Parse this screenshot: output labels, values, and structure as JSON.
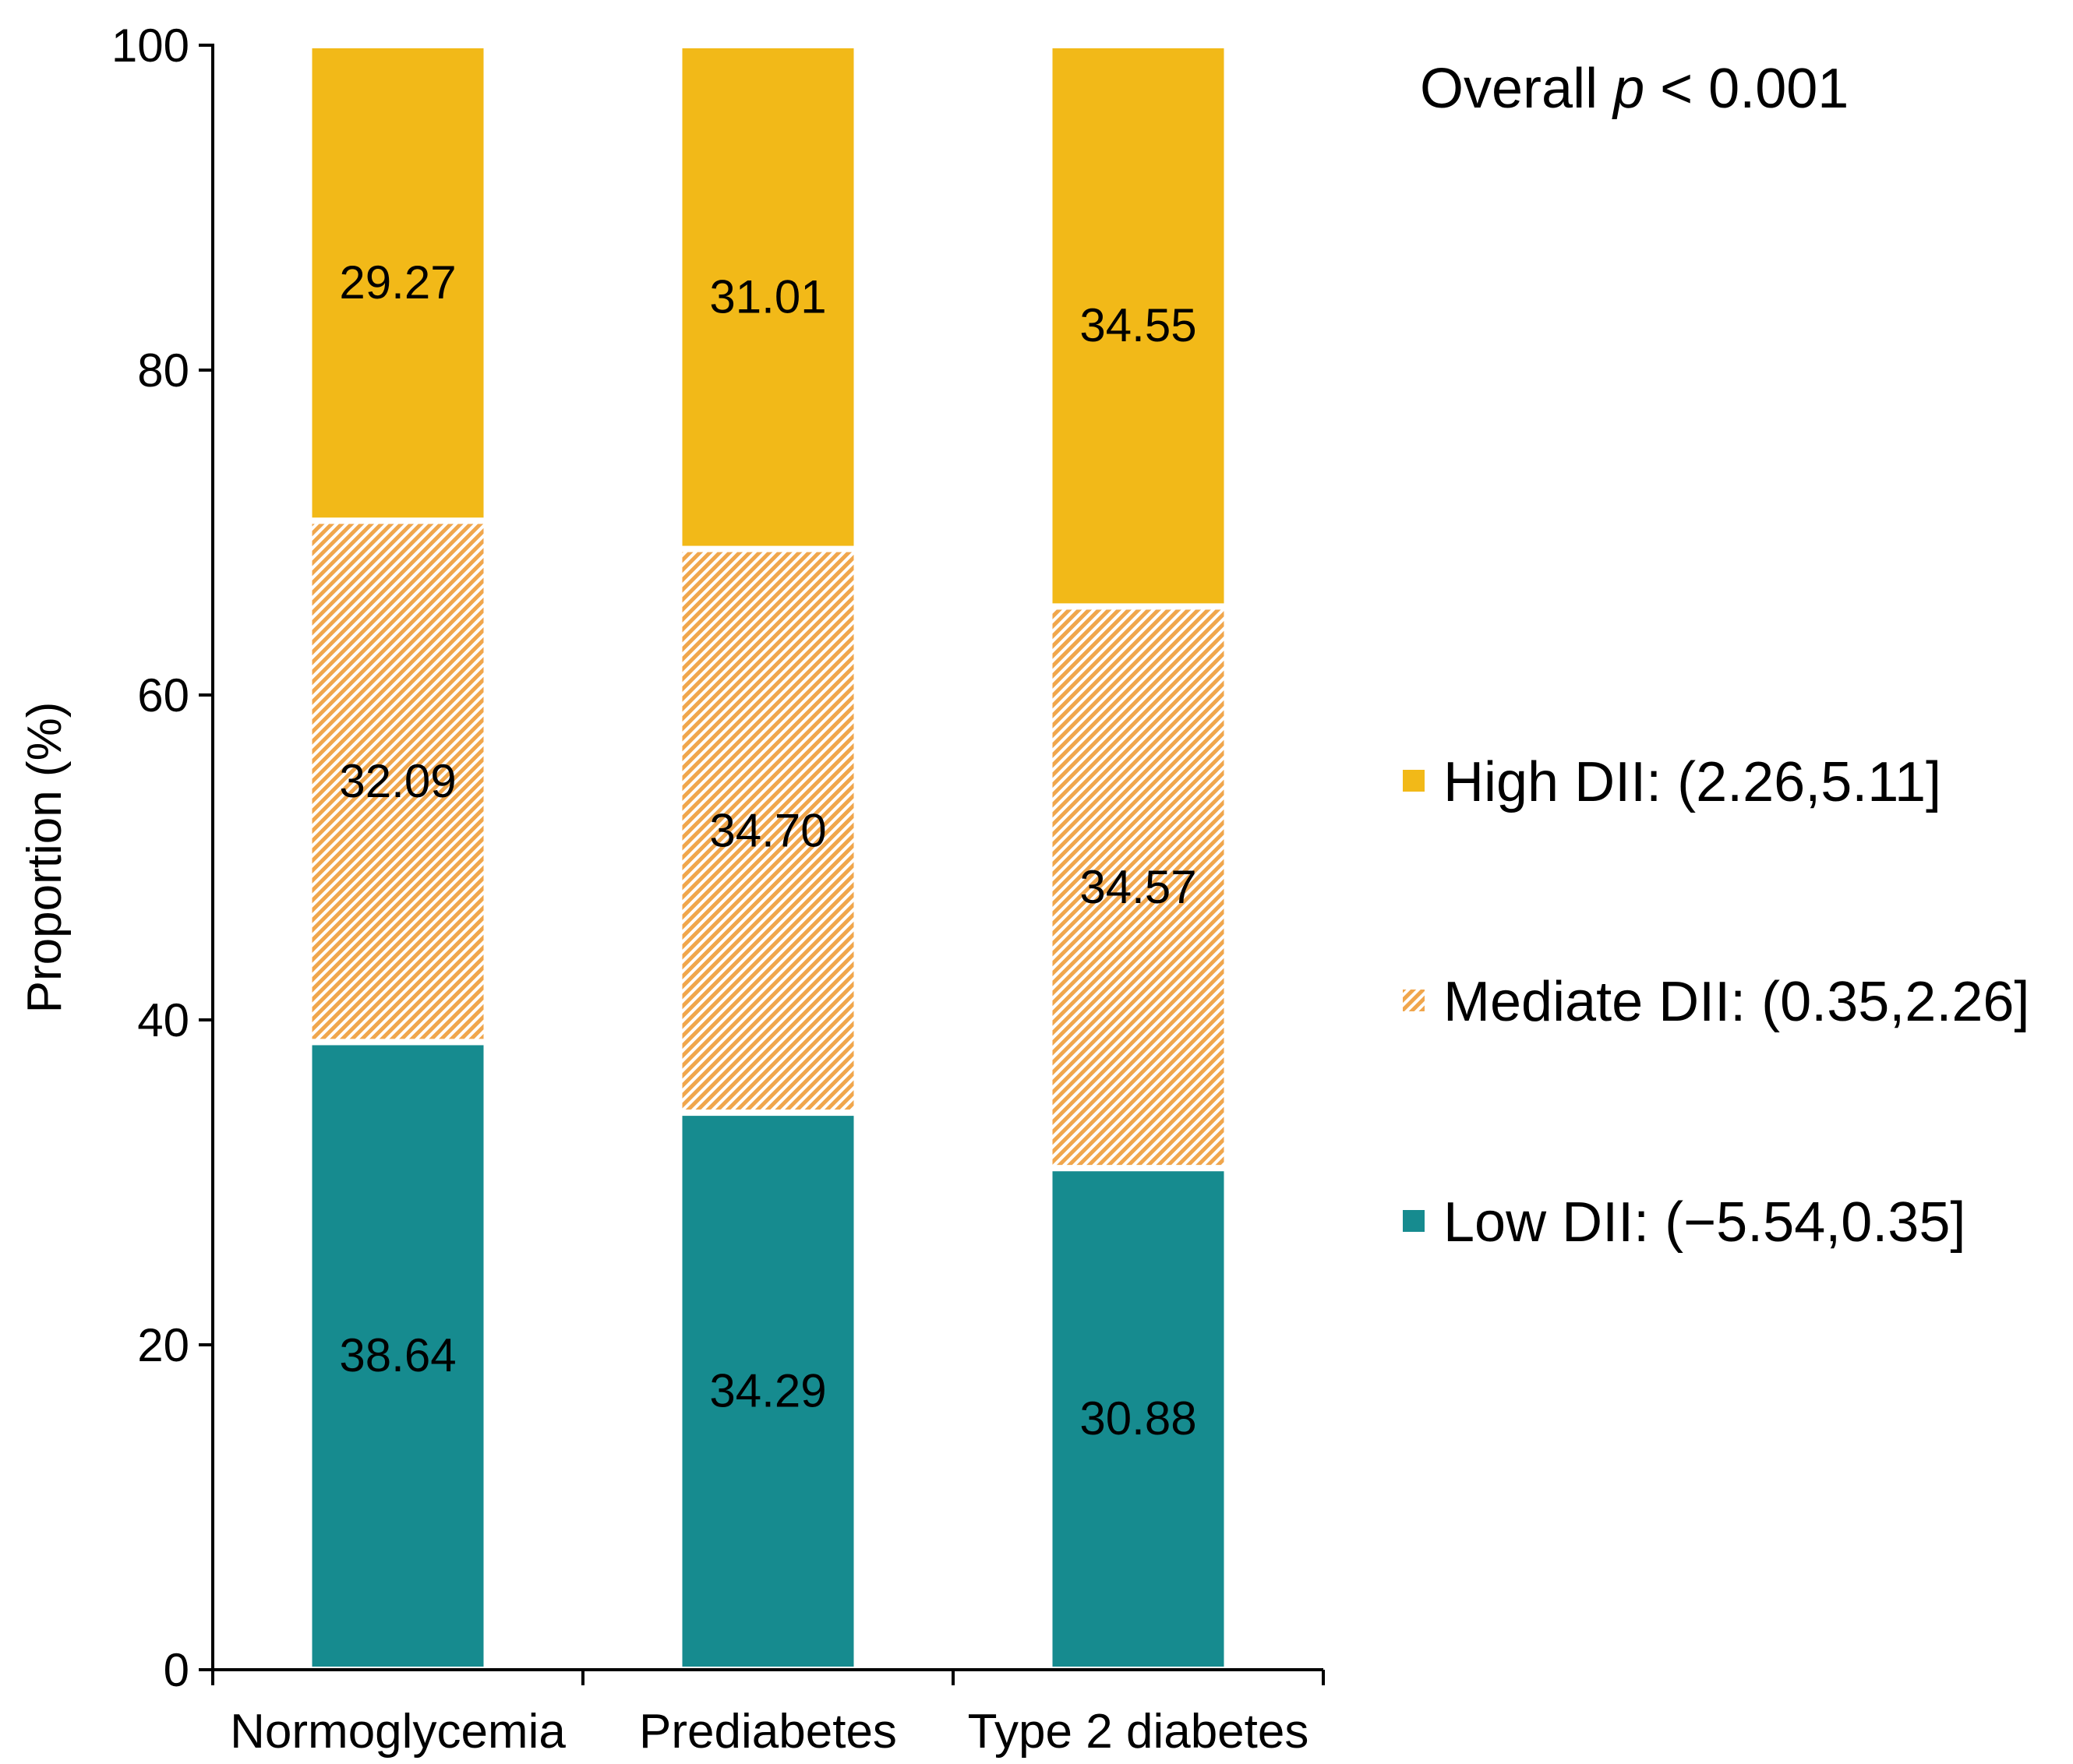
{
  "chart_data": {
    "type": "bar",
    "stacked": true,
    "title": "",
    "xlabel": "",
    "ylabel": "Proportion (%)",
    "ylim": [
      0,
      100
    ],
    "yticks": [
      0,
      20,
      40,
      60,
      80,
      100
    ],
    "categories": [
      "Normoglycemia",
      "Prediabetes",
      "Type 2 diabetes"
    ],
    "series": [
      {
        "name": "Low DII: (−5.54,0.35]",
        "color": "#168b8f",
        "pattern": "solid",
        "values": [
          38.64,
          34.29,
          30.88
        ]
      },
      {
        "name": "Mediate DII: (0.35,2.26]",
        "color": "#f0a64c",
        "pattern": "hatch",
        "values": [
          32.09,
          34.7,
          34.57
        ]
      },
      {
        "name": "High DII: (2.26,5.11]",
        "color": "#f2b918",
        "pattern": "solid",
        "values": [
          29.27,
          31.01,
          34.55
        ]
      }
    ],
    "data_labels": [
      [
        "38.64",
        "34.29",
        "30.88"
      ],
      [
        "32.09",
        "34.70",
        "34.57"
      ],
      [
        "29.27",
        "31.01",
        "34.55"
      ]
    ],
    "annotation": {
      "prefix": "Overall ",
      "italic": "p",
      "suffix": " < 0.001"
    },
    "legend_position": "right",
    "legend_order": [
      2,
      1,
      0
    ]
  }
}
